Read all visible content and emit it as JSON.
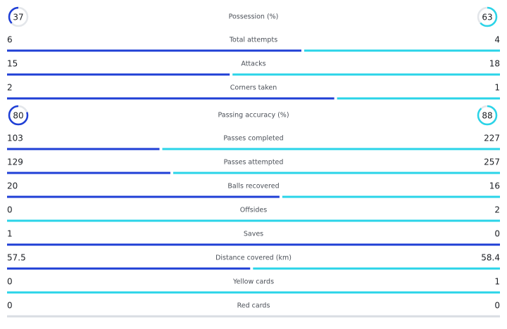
{
  "colors": {
    "home": "#1f3fd6",
    "away": "#2ad4e8",
    "empty": "#d9dde3",
    "track": "#e3e6ea"
  },
  "stats": [
    {
      "type": "ring",
      "label": "Possession (%)",
      "home": 37,
      "away": 63
    },
    {
      "type": "bar",
      "label": "Total attempts",
      "home": 6,
      "away": 4
    },
    {
      "type": "bar",
      "label": "Attacks",
      "home": 15,
      "away": 18
    },
    {
      "type": "bar",
      "label": "Corners taken",
      "home": 2,
      "away": 1
    },
    {
      "type": "ring",
      "label": "Passing accuracy (%)",
      "home": 80,
      "away": 88
    },
    {
      "type": "bar",
      "label": "Passes completed",
      "home": 103,
      "away": 227
    },
    {
      "type": "bar",
      "label": "Passes attempted",
      "home": 129,
      "away": 257
    },
    {
      "type": "bar",
      "label": "Balls recovered",
      "home": 20,
      "away": 16
    },
    {
      "type": "bar",
      "label": "Offsides",
      "home": 0,
      "away": 2
    },
    {
      "type": "bar",
      "label": "Saves",
      "home": 1,
      "away": 0
    },
    {
      "type": "bar",
      "label": "Distance covered (km)",
      "home": 57.5,
      "away": 58.4
    },
    {
      "type": "bar",
      "label": "Yellow cards",
      "home": 0,
      "away": 1
    },
    {
      "type": "bar",
      "label": "Red cards",
      "home": 0,
      "away": 0
    }
  ]
}
